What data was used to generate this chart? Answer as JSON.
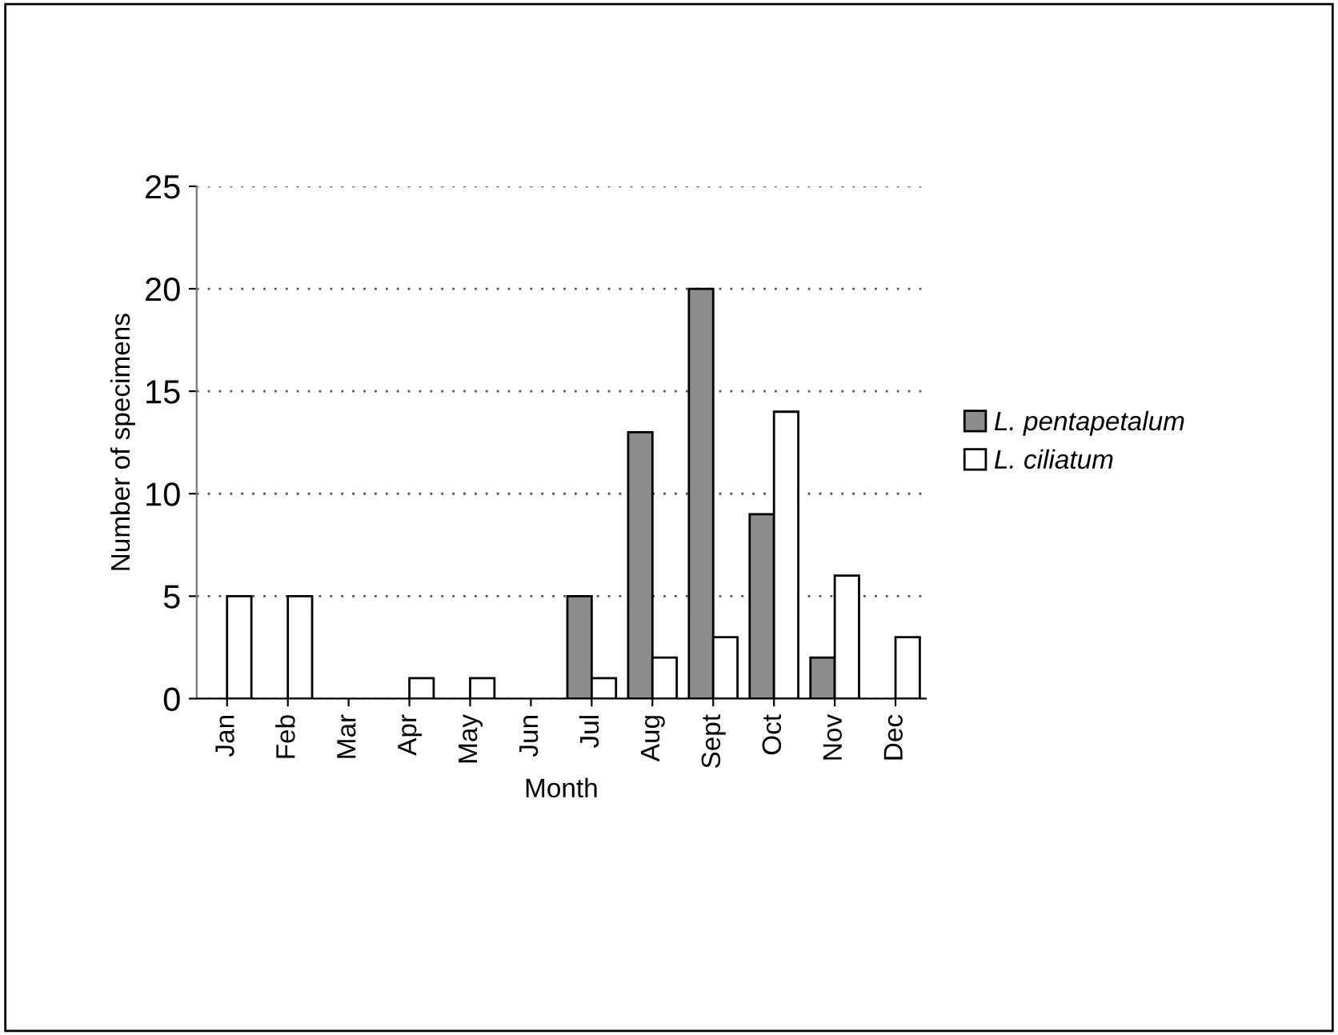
{
  "chart_data": {
    "type": "bar",
    "xlabel": "Month",
    "ylabel": "Number of specimens",
    "categories": [
      "Jan",
      "Feb",
      "Mar",
      "Apr",
      "May",
      "Jun",
      "Jul",
      "Aug",
      "Sept",
      "Oct",
      "Nov",
      "Dec"
    ],
    "series": [
      {
        "name": "L. pentapetalum",
        "color": "#8c8c8c",
        "values": [
          null,
          null,
          null,
          null,
          null,
          null,
          5,
          13,
          20,
          9,
          2,
          null
        ]
      },
      {
        "name": "L. ciliatum",
        "color": "#ffffff",
        "values": [
          5,
          5,
          null,
          1,
          1,
          null,
          1,
          2,
          3,
          14,
          6,
          3
        ]
      }
    ],
    "ylim": [
      0,
      25
    ],
    "yticks": [
      0,
      5,
      10,
      15,
      20,
      25
    ],
    "grid": "y",
    "legend": "right"
  }
}
